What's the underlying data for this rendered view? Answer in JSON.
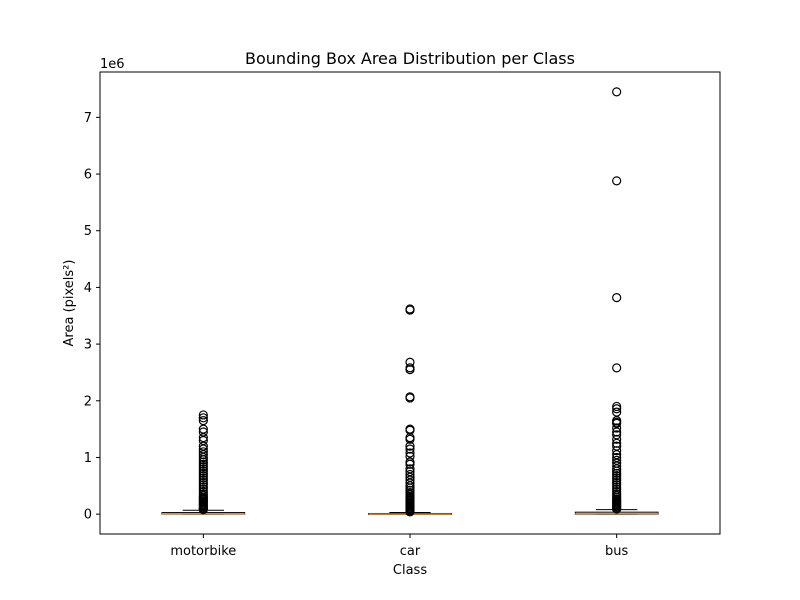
{
  "chart_data": {
    "type": "boxplot",
    "title": "Bounding Box Area Distribution per Class",
    "xlabel": "Class",
    "ylabel": "Area (pixels²)",
    "y_offset_label": "1e6",
    "categories": [
      "motorbike",
      "car",
      "bus"
    ],
    "ylim": [
      -0.35,
      7.8
    ],
    "yticks": [
      0,
      1,
      2,
      3,
      4,
      5,
      6,
      7
    ],
    "grid": false,
    "units_multiplier": 1000000,
    "boxes": [
      {
        "name": "motorbike",
        "q1": 0.0,
        "median": 0.008,
        "q3": 0.028,
        "whisker_low": 0.0,
        "whisker_high": 0.07,
        "outliers": [
          0.08,
          0.1,
          0.12,
          0.14,
          0.16,
          0.18,
          0.2,
          0.22,
          0.24,
          0.26,
          0.28,
          0.3,
          0.33,
          0.36,
          0.4,
          0.44,
          0.48,
          0.52,
          0.56,
          0.6,
          0.64,
          0.68,
          0.72,
          0.76,
          0.8,
          0.84,
          0.88,
          0.92,
          0.96,
          1.0,
          1.05,
          1.1,
          1.15,
          1.2,
          1.3,
          1.35,
          1.45,
          1.5,
          1.65,
          1.7,
          1.75
        ]
      },
      {
        "name": "car",
        "q1": 0.0,
        "median": 0.0,
        "q3": 0.012,
        "whisker_low": 0.0,
        "whisker_high": 0.03,
        "outliers": [
          0.04,
          0.06,
          0.08,
          0.1,
          0.12,
          0.14,
          0.16,
          0.18,
          0.2,
          0.22,
          0.24,
          0.26,
          0.28,
          0.3,
          0.32,
          0.35,
          0.38,
          0.42,
          0.46,
          0.5,
          0.55,
          0.6,
          0.65,
          0.7,
          0.75,
          0.8,
          0.88,
          0.92,
          1.02,
          1.08,
          1.15,
          1.2,
          1.32,
          1.35,
          1.48,
          1.5,
          2.05,
          2.07,
          2.55,
          2.58,
          2.68,
          3.6,
          3.62
        ]
      },
      {
        "name": "bus",
        "q1": 0.0,
        "median": 0.01,
        "q3": 0.035,
        "whisker_low": 0.0,
        "whisker_high": 0.08,
        "outliers": [
          0.09,
          0.11,
          0.13,
          0.15,
          0.17,
          0.19,
          0.21,
          0.23,
          0.25,
          0.27,
          0.3,
          0.33,
          0.36,
          0.4,
          0.44,
          0.48,
          0.52,
          0.56,
          0.6,
          0.64,
          0.68,
          0.72,
          0.76,
          0.8,
          0.85,
          0.9,
          0.95,
          1.0,
          1.05,
          1.12,
          1.2,
          1.25,
          1.32,
          1.4,
          1.45,
          1.52,
          1.6,
          1.62,
          1.65,
          1.8,
          1.86,
          1.9,
          2.58,
          3.82,
          5.88,
          7.45
        ]
      }
    ]
  },
  "colors": {
    "median": "#e08a3c",
    "box": "#000000",
    "outlier": "#000000",
    "background": "#ffffff"
  }
}
